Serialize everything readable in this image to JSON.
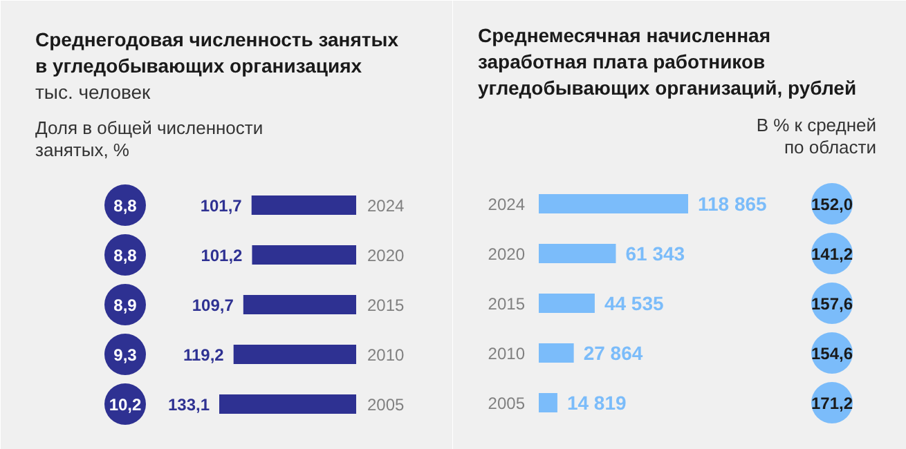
{
  "chart_data": [
    {
      "type": "bar",
      "orientation": "horizontal",
      "title": "Среднегодовая численность занятых в угледобывающих организациях",
      "subtitle": "тыс. человек",
      "categories": [
        "2024",
        "2020",
        "2015",
        "2010",
        "2005"
      ],
      "series": [
        {
          "color": "#2e3192",
          "values": [
            101.7,
            101.2,
            109.7,
            119.2,
            133.1
          ],
          "value_labels": [
            "101,7",
            "101,2",
            "109,7",
            "119,2",
            "133,1"
          ]
        }
      ],
      "annotations": [
        "Доля в общей численности занятых, %",
        "8,8",
        "8,8",
        "8,9",
        "9,3",
        "10,2"
      ]
    },
    {
      "type": "bar",
      "orientation": "horizontal",
      "title": "Среднемесячная начисленная заработная плата работников угледобывающих организаций, рублей",
      "categories": [
        "2024",
        "2020",
        "2015",
        "2010",
        "2005"
      ],
      "series": [
        {
          "color": "#7bbcfa",
          "values": [
            118865,
            61343,
            44535,
            27864,
            14819
          ],
          "value_labels": [
            "118 865",
            "61 343",
            "44 535",
            "27 864",
            "14 819"
          ]
        }
      ],
      "annotations": [
        "В % к средней по области",
        "152,0",
        "141,2",
        "157,6",
        "154,6",
        "171,2"
      ]
    }
  ]
}
